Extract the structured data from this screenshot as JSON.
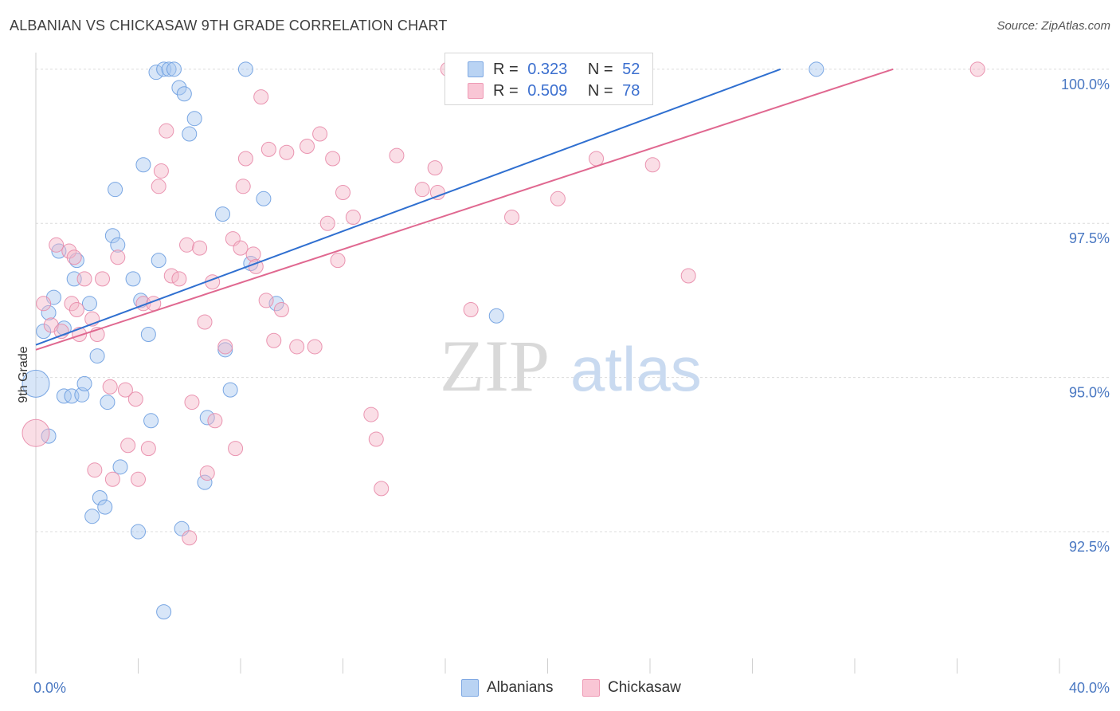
{
  "header": {
    "title": "ALBANIAN VS CHICKASAW 9TH GRADE CORRELATION CHART",
    "source": "Source: ZipAtlas.com"
  },
  "watermark": {
    "zip": "ZIP",
    "atlas": "atlas"
  },
  "legend": {
    "r_label": "R =",
    "n_label": "N =",
    "rows": [
      {
        "name": "Albanians",
        "r": "0.323",
        "n": "52"
      },
      {
        "name": "Chickasaw",
        "r": "0.509",
        "n": "78"
      }
    ]
  },
  "colors": {
    "blue_fill": "#a9c8f0",
    "blue_stroke": "#6c9de0",
    "blue_line": "#2f6fd0",
    "pink_fill": "#f5b5c8",
    "pink_stroke": "#e88aa8",
    "pink_line": "#e06890",
    "axis_text": "#4a78c2",
    "grid": "#dcdcdc"
  },
  "chart_data": {
    "type": "scatter",
    "title": "ALBANIAN VS CHICKASAW 9TH GRADE CORRELATION CHART",
    "xlabel": "",
    "ylabel": "9th Grade",
    "xlim": [
      0,
      40
    ],
    "ylim": [
      90.2,
      100.45
    ],
    "x_tick_labels": [
      {
        "value": 0,
        "label": "0.0%"
      },
      {
        "value": 40,
        "label": "40.0%"
      }
    ],
    "x_minor_ticks": [
      0,
      4,
      8,
      12,
      16,
      20,
      24,
      28,
      32,
      36,
      40
    ],
    "y_ticks": [
      {
        "value": 92.5,
        "label": "92.5%"
      },
      {
        "value": 95.0,
        "label": "95.0%"
      },
      {
        "value": 97.5,
        "label": "97.5%"
      },
      {
        "value": 100.0,
        "label": "100.0%"
      }
    ],
    "grid": true,
    "series": [
      {
        "name": "Albanians",
        "color": "blue",
        "trend": {
          "x": [
            0,
            29.1
          ],
          "y": [
            95.53,
            100.0
          ]
        },
        "points": [
          [
            0.3,
            95.75,
            9
          ],
          [
            0.5,
            96.05,
            9
          ],
          [
            0.7,
            96.3,
            9
          ],
          [
            0.9,
            97.05,
            9
          ],
          [
            1.1,
            95.8,
            9
          ],
          [
            1.1,
            94.7,
            9
          ],
          [
            1.4,
            94.7,
            9
          ],
          [
            1.5,
            96.6,
            9
          ],
          [
            1.6,
            96.9,
            9
          ],
          [
            1.8,
            94.72,
            9
          ],
          [
            1.9,
            94.9,
            9
          ],
          [
            2.1,
            96.2,
            9
          ],
          [
            2.4,
            95.35,
            9
          ],
          [
            2.5,
            93.05,
            9
          ],
          [
            2.2,
            92.75,
            9
          ],
          [
            2.7,
            92.9,
            9
          ],
          [
            2.8,
            94.6,
            9
          ],
          [
            3.0,
            97.3,
            9
          ],
          [
            3.2,
            97.15,
            9
          ],
          [
            3.3,
            93.55,
            9
          ],
          [
            3.1,
            98.05,
            9
          ],
          [
            3.8,
            96.6,
            9
          ],
          [
            4.0,
            92.5,
            9
          ],
          [
            4.2,
            98.45,
            9
          ],
          [
            4.4,
            95.7,
            9
          ],
          [
            4.5,
            94.3,
            9
          ],
          [
            4.1,
            96.25,
            9
          ],
          [
            4.8,
            96.9,
            9
          ],
          [
            4.7,
            99.95,
            9
          ],
          [
            5.0,
            100.0,
            9
          ],
          [
            5.2,
            100.0,
            9
          ],
          [
            5.4,
            100.0,
            9
          ],
          [
            5.6,
            99.7,
            9
          ],
          [
            5.8,
            99.6,
            9
          ],
          [
            6.2,
            99.2,
            9
          ],
          [
            6.0,
            98.95,
            9
          ],
          [
            5.7,
            92.55,
            9
          ],
          [
            5.0,
            91.2,
            9
          ],
          [
            6.6,
            93.3,
            9
          ],
          [
            6.7,
            94.35,
            9
          ],
          [
            7.3,
            97.65,
            9
          ],
          [
            7.4,
            95.45,
            9
          ],
          [
            7.6,
            94.8,
            9
          ],
          [
            8.2,
            100.0,
            9
          ],
          [
            8.4,
            96.85,
            9
          ],
          [
            8.9,
            97.9,
            9
          ],
          [
            9.4,
            96.2,
            9
          ],
          [
            18.0,
            96.0,
            9
          ],
          [
            30.5,
            100.0,
            9
          ],
          [
            0.0,
            94.9,
            17
          ],
          [
            0.5,
            94.05,
            9
          ]
        ]
      },
      {
        "name": "Chickasaw",
        "color": "pink",
        "trend": {
          "x": [
            0,
            33.5
          ],
          "y": [
            95.45,
            100.0
          ]
        },
        "points": [
          [
            0.3,
            96.2,
            9
          ],
          [
            0.6,
            95.85,
            9
          ],
          [
            0.8,
            97.15,
            9
          ],
          [
            1.0,
            95.75,
            9
          ],
          [
            1.3,
            97.05,
            9
          ],
          [
            1.5,
            96.95,
            9
          ],
          [
            1.4,
            96.2,
            9
          ],
          [
            1.6,
            96.1,
            9
          ],
          [
            1.7,
            95.7,
            9
          ],
          [
            1.9,
            96.6,
            9
          ],
          [
            2.2,
            95.95,
            9
          ],
          [
            2.4,
            95.7,
            9
          ],
          [
            2.6,
            96.6,
            9
          ],
          [
            2.3,
            93.5,
            9
          ],
          [
            2.9,
            94.85,
            9
          ],
          [
            3.0,
            93.35,
            9
          ],
          [
            3.2,
            96.95,
            9
          ],
          [
            3.5,
            94.8,
            9
          ],
          [
            3.6,
            93.9,
            9
          ],
          [
            3.9,
            94.65,
            9
          ],
          [
            4.0,
            93.35,
            9
          ],
          [
            4.2,
            96.2,
            9
          ],
          [
            4.4,
            93.85,
            9
          ],
          [
            4.6,
            96.2,
            9
          ],
          [
            4.8,
            98.1,
            9
          ],
          [
            4.9,
            98.35,
            9
          ],
          [
            5.1,
            99.0,
            9
          ],
          [
            5.3,
            96.65,
            9
          ],
          [
            5.6,
            96.6,
            9
          ],
          [
            5.9,
            97.15,
            9
          ],
          [
            6.0,
            92.4,
            9
          ],
          [
            6.1,
            94.6,
            9
          ],
          [
            6.4,
            97.1,
            9
          ],
          [
            6.6,
            95.9,
            9
          ],
          [
            6.7,
            93.45,
            9
          ],
          [
            6.9,
            96.55,
            9
          ],
          [
            7.0,
            94.3,
            9
          ],
          [
            7.4,
            95.5,
            9
          ],
          [
            7.7,
            97.25,
            9
          ],
          [
            7.8,
            93.85,
            9
          ],
          [
            8.0,
            97.1,
            9
          ],
          [
            8.1,
            98.1,
            9
          ],
          [
            8.2,
            98.55,
            9
          ],
          [
            8.5,
            97.0,
            9
          ],
          [
            8.6,
            96.8,
            9
          ],
          [
            8.8,
            99.55,
            9
          ],
          [
            9.0,
            96.25,
            9
          ],
          [
            9.1,
            98.7,
            9
          ],
          [
            9.3,
            95.6,
            9
          ],
          [
            9.6,
            96.1,
            9
          ],
          [
            9.8,
            98.65,
            9
          ],
          [
            10.2,
            95.5,
            9
          ],
          [
            10.6,
            98.75,
            9
          ],
          [
            10.9,
            95.5,
            9
          ],
          [
            11.1,
            98.95,
            9
          ],
          [
            11.4,
            97.5,
            9
          ],
          [
            11.6,
            98.55,
            9
          ],
          [
            11.8,
            96.9,
            9
          ],
          [
            12.0,
            98.0,
            9
          ],
          [
            12.4,
            97.6,
            9
          ],
          [
            13.1,
            94.4,
            9
          ],
          [
            13.3,
            94.0,
            9
          ],
          [
            13.5,
            93.2,
            9
          ],
          [
            14.1,
            98.6,
            9
          ],
          [
            15.1,
            98.05,
            9
          ],
          [
            15.6,
            98.4,
            9
          ],
          [
            15.7,
            98.0,
            9
          ],
          [
            16.1,
            100.0,
            9
          ],
          [
            17.0,
            96.1,
            9
          ],
          [
            18.6,
            97.6,
            9
          ],
          [
            20.4,
            97.9,
            9
          ],
          [
            21.2,
            100.0,
            9
          ],
          [
            21.9,
            98.55,
            9
          ],
          [
            24.1,
            98.45,
            9
          ],
          [
            25.5,
            96.65,
            9
          ],
          [
            36.8,
            100.0,
            9
          ],
          [
            0.0,
            94.1,
            17
          ]
        ]
      }
    ]
  }
}
